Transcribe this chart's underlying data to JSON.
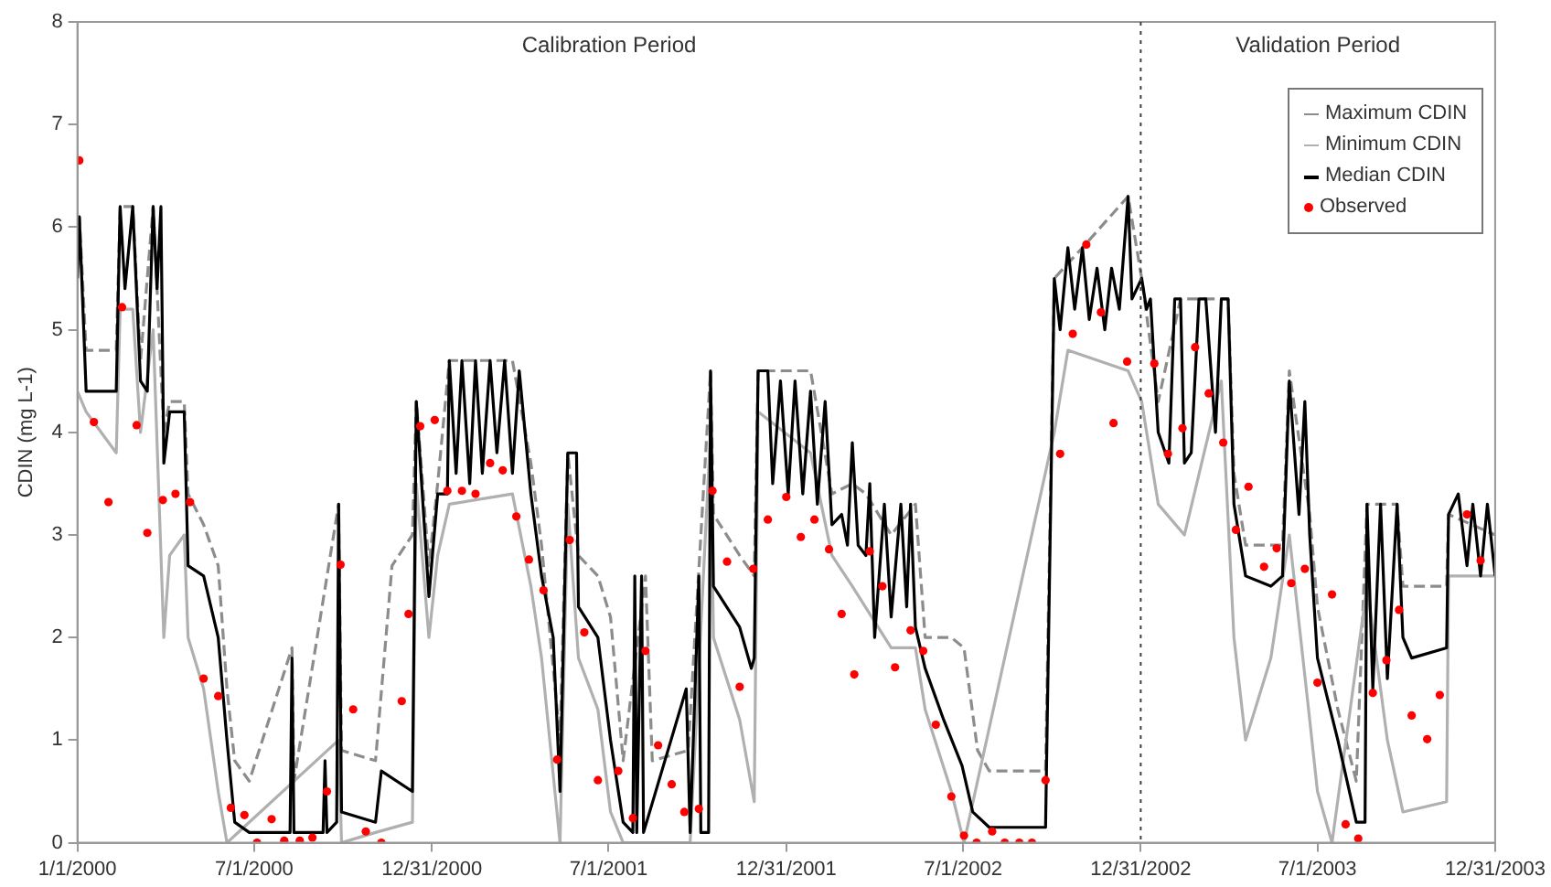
{
  "chart_data": {
    "type": "line",
    "ylabel": "CDIN (mg L-1)",
    "xlim": [
      "2000-01-01",
      "2003-12-31"
    ],
    "xticks": [
      {
        "value": "2000-01-01",
        "label": "1/1/2000"
      },
      {
        "value": "2000-07-01",
        "label": "7/1/2000"
      },
      {
        "value": "2000-12-31",
        "label": "12/31/2000"
      },
      {
        "value": "2001-07-01",
        "label": "7/1/2001"
      },
      {
        "value": "2001-12-31",
        "label": "12/31/2001"
      },
      {
        "value": "2002-07-01",
        "label": "7/1/2002"
      },
      {
        "value": "2002-12-31",
        "label": "12/31/2002"
      },
      {
        "value": "2003-07-01",
        "label": "7/1/2003"
      },
      {
        "value": "2003-12-31",
        "label": "12/31/2003"
      }
    ],
    "ylim": [
      0,
      8
    ],
    "yticks": [
      0,
      1,
      2,
      3,
      4,
      5,
      6,
      7,
      8
    ],
    "grid": false,
    "legend": "top right",
    "ref_lines": [
      {
        "axis": "x",
        "value": "2002-12-31",
        "color": "#404040",
        "line_style": "dotted"
      }
    ],
    "annotations": [
      "Calibration Period",
      "Validation Period"
    ],
    "series": [
      {
        "name": "Maximum CDIN",
        "color": "#8c8c8c",
        "line_style": "dashed",
        "x": [
          "2000-01-01",
          "2000-01-03",
          "2000-01-10",
          "2000-02-10",
          "2000-02-14",
          "2000-02-27",
          "2000-03-06",
          "2000-03-19",
          "2000-03-30",
          "2000-04-05",
          "2000-04-20",
          "2000-04-24",
          "2000-05-10",
          "2000-05-25",
          "2000-06-03",
          "2000-06-11",
          "2000-06-26",
          "2000-08-09",
          "2000-08-11",
          "2000-09-26",
          "2000-09-29",
          "2000-11-03",
          "2000-11-20",
          "2000-12-11",
          "2000-12-15",
          "2000-12-28",
          "2001-01-06",
          "2001-01-18",
          "2001-03-24",
          "2001-04-12",
          "2001-04-23",
          "2001-05-12",
          "2001-05-20",
          "2001-05-31",
          "2001-06-20",
          "2001-07-03",
          "2001-07-16",
          "2001-08-08",
          "2001-08-15",
          "2001-09-21",
          "2001-10-14",
          "2001-10-17",
          "2001-11-13",
          "2001-11-28",
          "2001-12-02",
          "2002-01-25",
          "2002-02-16",
          "2002-03-09",
          "2002-03-23",
          "2002-04-18",
          "2002-05-13",
          "2002-05-23",
          "2002-06-19",
          "2002-07-02",
          "2002-07-16",
          "2002-07-28",
          "2002-09-24",
          "2002-10-03",
          "2002-11-01",
          "2002-12-18",
          "2003-01-01",
          "2003-01-18",
          "2003-02-10",
          "2003-03-31",
          "2003-04-06",
          "2003-04-18",
          "2003-05-26",
          "2003-06-02",
          "2003-06-23",
          "2003-07-01",
          "2003-07-22",
          "2003-08-10",
          "2003-08-21",
          "2003-09-21",
          "2003-09-27",
          "2003-11-11",
          "2003-11-13",
          "2003-12-31"
        ],
        "values": [
          5.6,
          6.1,
          4.8,
          4.8,
          6.2,
          6.2,
          4.7,
          6.2,
          4.0,
          4.3,
          4.3,
          3.4,
          3.1,
          2.7,
          1.5,
          0.8,
          0.6,
          1.9,
          0.6,
          3.3,
          0.9,
          0.8,
          2.7,
          3.0,
          4.3,
          2.7,
          3.5,
          4.7,
          4.7,
          3.7,
          2.9,
          1.0,
          3.8,
          2.8,
          2.6,
          2.2,
          0.8,
          2.6,
          0.8,
          0.9,
          4.6,
          3.2,
          2.8,
          2.6,
          4.6,
          4.6,
          3.4,
          3.5,
          3.4,
          3.0,
          3.3,
          2.0,
          2.0,
          1.9,
          0.9,
          0.7,
          0.7,
          5.5,
          5.8,
          6.3,
          5.5,
          4.3,
          5.3,
          5.3,
          3.6,
          2.9,
          2.9,
          4.6,
          3.2,
          2.3,
          1.3,
          0.6,
          3.3,
          3.3,
          2.5,
          2.5,
          3.2,
          3.0
        ]
      },
      {
        "name": "Minimum CDIN",
        "color": "#b0b0b0",
        "x": [
          "2000-01-01",
          "2000-01-10",
          "2000-02-10",
          "2000-02-14",
          "2000-02-27",
          "2000-03-06",
          "2000-03-19",
          "2000-03-30",
          "2000-04-05",
          "2000-04-20",
          "2000-04-24",
          "2000-05-10",
          "2000-05-25",
          "2000-06-03",
          "2000-09-26",
          "2000-09-29",
          "2000-11-03",
          "2000-12-11",
          "2000-12-15",
          "2000-12-28",
          "2001-01-06",
          "2001-01-18",
          "2001-03-24",
          "2001-04-12",
          "2001-04-23",
          "2001-05-12",
          "2001-05-20",
          "2001-05-31",
          "2001-06-20",
          "2001-07-03",
          "2001-07-16",
          "2001-09-23",
          "2001-10-14",
          "2001-10-17",
          "2001-11-13",
          "2001-11-28",
          "2001-12-02",
          "2002-01-25",
          "2002-02-16",
          "2002-03-09",
          "2002-04-18",
          "2002-05-13",
          "2002-05-23",
          "2002-06-19",
          "2002-07-02",
          "2002-10-03",
          "2002-10-17",
          "2002-12-18",
          "2003-01-01",
          "2003-01-18",
          "2003-02-14",
          "2003-03-24",
          "2003-04-06",
          "2003-04-18",
          "2003-05-14",
          "2003-06-02",
          "2003-06-23",
          "2003-07-01",
          "2003-07-16",
          "2003-08-21",
          "2003-09-11",
          "2003-09-27",
          "2003-11-11",
          "2003-11-13",
          "2003-12-31"
        ],
        "values": [
          4.4,
          4.2,
          3.8,
          5.2,
          5.2,
          4.0,
          5.0,
          2.0,
          2.8,
          3.0,
          2.0,
          1.5,
          0.5,
          0.0,
          1.0,
          0.0,
          0.1,
          0.2,
          3.5,
          2.0,
          2.8,
          3.3,
          3.4,
          2.5,
          1.8,
          0.0,
          3.3,
          1.8,
          1.3,
          0.3,
          0.0,
          0.0,
          4.0,
          2.0,
          1.2,
          0.4,
          4.2,
          3.8,
          2.8,
          2.5,
          1.9,
          1.9,
          1.3,
          0.5,
          0.0,
          4.0,
          4.8,
          4.6,
          4.3,
          3.3,
          3.0,
          4.5,
          2.0,
          1.0,
          1.8,
          3.0,
          1.2,
          0.5,
          0.0,
          2.5,
          1.0,
          0.3,
          0.4,
          2.6,
          2.6
        ]
      },
      {
        "name": "Median CDIN",
        "color": "#000000",
        "x": [
          "2000-01-01",
          "2000-01-03",
          "2000-01-10",
          "2000-02-10",
          "2000-02-14",
          "2000-02-19",
          "2000-02-27",
          "2000-03-06",
          "2000-03-13",
          "2000-03-19",
          "2000-03-23",
          "2000-03-27",
          "2000-03-30",
          "2000-04-05",
          "2000-04-20",
          "2000-04-24",
          "2000-05-10",
          "2000-05-25",
          "2000-06-03",
          "2000-06-11",
          "2000-06-26",
          "2000-08-07",
          "2000-08-09",
          "2000-08-11",
          "2000-09-10",
          "2000-09-12",
          "2000-09-14",
          "2000-09-24",
          "2000-09-26",
          "2000-09-29",
          "2000-11-03",
          "2000-11-09",
          "2000-12-11",
          "2000-12-15",
          "2000-12-28",
          "2001-01-06",
          "2001-01-16",
          "2001-01-18",
          "2001-01-25",
          "2001-01-31",
          "2001-02-08",
          "2001-02-14",
          "2001-02-21",
          "2001-03-01",
          "2001-03-08",
          "2001-03-16",
          "2001-03-24",
          "2001-03-31",
          "2001-04-08",
          "2001-04-12",
          "2001-04-23",
          "2001-05-05",
          "2001-05-12",
          "2001-05-20",
          "2001-05-29",
          "2001-05-31",
          "2001-06-20",
          "2001-07-03",
          "2001-07-16",
          "2001-07-26",
          "2001-07-28",
          "2001-07-30",
          "2001-08-04",
          "2001-08-06",
          "2001-09-19",
          "2001-09-23",
          "2001-10-02",
          "2001-10-04",
          "2001-10-12",
          "2001-10-14",
          "2001-10-17",
          "2001-11-13",
          "2001-11-25",
          "2001-11-28",
          "2001-12-02",
          "2001-12-12",
          "2001-12-17",
          "2001-12-25",
          "2002-01-02",
          "2002-01-09",
          "2002-01-17",
          "2002-01-25",
          "2002-02-01",
          "2002-02-09",
          "2002-02-16",
          "2002-02-26",
          "2002-03-04",
          "2002-03-09",
          "2002-03-15",
          "2002-03-23",
          "2002-03-27",
          "2002-04-01",
          "2002-04-11",
          "2002-04-18",
          "2002-04-28",
          "2002-05-04",
          "2002-05-08",
          "2002-05-13",
          "2002-05-23",
          "2002-06-11",
          "2002-06-30",
          "2002-07-11",
          "2002-07-28",
          "2002-09-24",
          "2002-10-03",
          "2002-10-09",
          "2002-10-17",
          "2002-10-24",
          "2002-11-01",
          "2002-11-08",
          "2002-11-16",
          "2002-11-24",
          "2002-12-01",
          "2002-12-09",
          "2002-12-18",
          "2002-12-22",
          "2003-01-01",
          "2003-01-06",
          "2003-01-10",
          "2003-01-18",
          "2003-01-29",
          "2003-02-04",
          "2003-02-10",
          "2003-02-14",
          "2003-02-21",
          "2003-03-01",
          "2003-03-08",
          "2003-03-18",
          "2003-03-24",
          "2003-03-31",
          "2003-04-06",
          "2003-04-18",
          "2003-05-14",
          "2003-05-26",
          "2003-06-02",
          "2003-06-12",
          "2003-06-18",
          "2003-06-23",
          "2003-07-01",
          "2003-07-22",
          "2003-08-10",
          "2003-08-19",
          "2003-08-21",
          "2003-08-27",
          "2003-09-04",
          "2003-09-11",
          "2003-09-21",
          "2003-09-27",
          "2003-10-06",
          "2003-11-11",
          "2003-11-13",
          "2003-11-23",
          "2003-12-02",
          "2003-12-08",
          "2003-12-16",
          "2003-12-23",
          "2003-12-31"
        ],
        "values": [
          5.5,
          6.1,
          4.4,
          4.4,
          6.2,
          5.4,
          6.2,
          4.5,
          4.4,
          6.2,
          5.4,
          6.2,
          3.7,
          4.2,
          4.2,
          2.7,
          2.6,
          2.0,
          1.0,
          0.2,
          0.1,
          0.1,
          1.8,
          0.1,
          0.1,
          0.8,
          0.1,
          0.2,
          3.3,
          0.3,
          0.2,
          0.7,
          0.5,
          4.3,
          2.4,
          3.4,
          3.4,
          4.7,
          3.6,
          4.7,
          3.5,
          4.7,
          3.6,
          4.7,
          3.8,
          4.7,
          3.6,
          4.6,
          3.8,
          3.4,
          2.6,
          2.0,
          0.5,
          3.8,
          3.8,
          2.3,
          2.0,
          1.0,
          0.2,
          0.1,
          2.6,
          0.1,
          2.6,
          0.1,
          1.5,
          0.1,
          2.6,
          0.1,
          0.1,
          4.6,
          2.5,
          2.1,
          1.7,
          1.8,
          4.6,
          4.6,
          3.5,
          4.5,
          3.4,
          4.5,
          3.4,
          4.4,
          3.3,
          4.3,
          3.1,
          3.2,
          2.9,
          3.9,
          2.9,
          2.8,
          3.5,
          2.0,
          3.3,
          2.2,
          3.3,
          2.3,
          3.3,
          2.1,
          1.7,
          1.2,
          0.75,
          0.3,
          0.15,
          0.15,
          5.5,
          5.0,
          5.8,
          5.2,
          5.8,
          5.1,
          5.6,
          5.0,
          5.6,
          5.2,
          6.3,
          5.3,
          5.5,
          5.2,
          5.3,
          4.0,
          3.7,
          5.3,
          5.3,
          3.7,
          3.8,
          5.3,
          5.3,
          4.0,
          5.3,
          5.3,
          3.3,
          2.6,
          2.5,
          2.6,
          4.5,
          3.2,
          4.3,
          3.0,
          1.8,
          1.0,
          0.2,
          0.2,
          3.3,
          1.5,
          3.3,
          1.6,
          3.3,
          2.0,
          1.8,
          1.9,
          3.2,
          3.4,
          2.7,
          3.3,
          2.6,
          3.3,
          2.6
        ]
      },
      {
        "name": "Observed",
        "type": "scatter",
        "color": "#ff0000",
        "marker": "circle",
        "x": [
          "2000-01-03",
          "2000-01-18",
          "2000-02-02",
          "2000-02-16",
          "2000-03-02",
          "2000-03-13",
          "2000-03-29",
          "2000-04-11",
          "2000-04-26",
          "2000-05-10",
          "2000-05-25",
          "2000-06-07",
          "2000-06-21",
          "2000-07-04",
          "2000-07-19",
          "2000-08-01",
          "2000-08-17",
          "2000-08-30",
          "2000-09-14",
          "2000-09-28",
          "2000-10-11",
          "2000-10-24",
          "2000-11-09",
          "2000-11-30",
          "2000-12-07",
          "2000-12-19",
          "2001-01-03",
          "2001-01-16",
          "2001-01-31",
          "2001-02-14",
          "2001-03-01",
          "2001-03-14",
          "2001-03-28",
          "2001-04-10",
          "2001-04-25",
          "2001-05-09",
          "2001-05-22",
          "2001-06-06",
          "2001-06-20",
          "2001-07-11",
          "2001-07-26",
          "2001-08-08",
          "2001-08-21",
          "2001-09-04",
          "2001-09-17",
          "2001-10-02",
          "2001-10-16",
          "2001-10-31",
          "2001-11-13",
          "2001-11-27",
          "2001-12-12",
          "2001-12-31",
          "2002-01-15",
          "2002-01-29",
          "2002-02-13",
          "2002-02-26",
          "2002-03-11",
          "2002-03-27",
          "2002-04-09",
          "2002-04-22",
          "2002-05-08",
          "2002-05-21",
          "2002-06-03",
          "2002-06-19",
          "2002-07-02",
          "2002-07-15",
          "2002-07-31",
          "2002-08-13",
          "2002-08-28",
          "2002-09-10",
          "2002-09-24",
          "2002-10-09",
          "2002-10-22",
          "2002-11-05",
          "2002-11-20",
          "2002-12-03",
          "2002-12-17",
          "2003-01-14",
          "2003-01-28",
          "2003-02-12",
          "2003-02-25",
          "2003-03-11",
          "2003-03-26",
          "2003-04-08",
          "2003-04-21",
          "2003-05-07",
          "2003-05-20",
          "2003-06-04",
          "2003-06-18",
          "2003-07-01",
          "2003-07-16",
          "2003-07-30",
          "2003-08-12",
          "2003-08-27",
          "2003-09-10",
          "2003-09-23",
          "2003-10-06",
          "2003-10-22",
          "2003-11-04",
          "2003-12-02",
          "2003-12-16"
        ],
        "values": [
          6.65,
          4.1,
          3.32,
          5.22,
          4.07,
          3.02,
          3.34,
          3.4,
          3.32,
          1.6,
          1.43,
          0.34,
          0.27,
          0,
          0.23,
          0.02,
          0.02,
          0.05,
          0.5,
          2.71,
          1.3,
          0.11,
          0,
          1.38,
          2.23,
          4.06,
          4.12,
          3.43,
          3.43,
          3.4,
          3.7,
          3.63,
          3.18,
          2.76,
          2.46,
          0.81,
          2.95,
          2.05,
          0.61,
          0.7,
          0.24,
          1.87,
          0.95,
          0.57,
          0.3,
          0.33,
          3.43,
          2.74,
          1.52,
          2.67,
          3.15,
          3.37,
          2.98,
          3.15,
          2.86,
          2.23,
          1.64,
          2.84,
          2.5,
          1.71,
          2.07,
          1.87,
          1.15,
          0.45,
          0.07,
          0,
          0.11,
          0,
          0,
          0,
          0.61,
          3.79,
          4.96,
          5.83,
          5.17,
          4.09,
          4.69,
          4.67,
          3.79,
          4.04,
          4.83,
          4.38,
          3.9,
          3.05,
          3.47,
          2.69,
          2.87,
          2.53,
          2.67,
          1.56,
          2.42,
          0.18,
          0.04,
          1.46,
          1.78,
          2.27,
          1.24,
          1.01,
          1.44,
          3.2,
          2.75
        ]
      }
    ]
  }
}
